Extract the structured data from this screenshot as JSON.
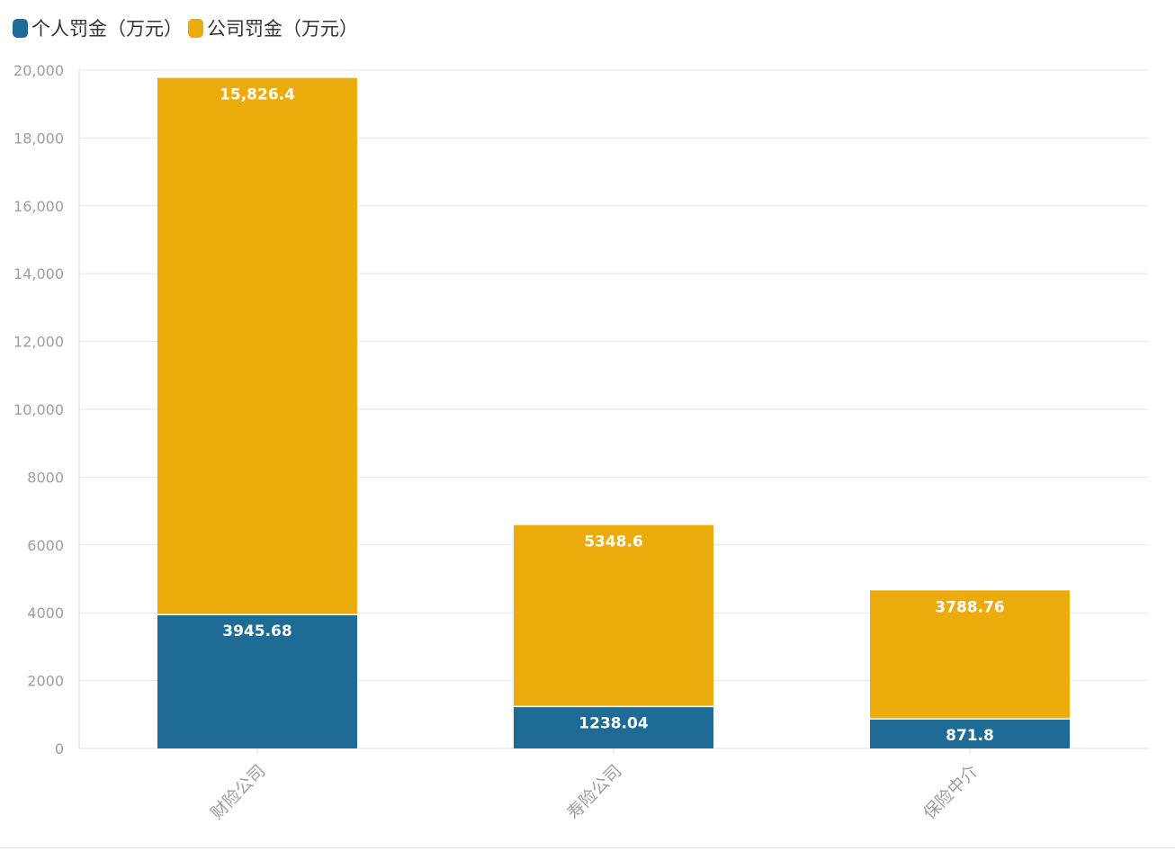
{
  "legend": {
    "personal_label": "个人罚金（万元）",
    "company_label": "公司罚金（万元）"
  },
  "colors": {
    "personal": "#1e6b96",
    "company": "#ebac0b",
    "grid": "#e6e6e6",
    "axis_text": "#9e9e9e"
  },
  "chart_data": {
    "type": "bar",
    "stacked": true,
    "categories": [
      "财险公司",
      "寿险公司",
      "保险中介"
    ],
    "series": [
      {
        "name": "个人罚金（万元）",
        "values": [
          3945.68,
          1238.04,
          871.8
        ],
        "labels": [
          "3945.68",
          "1238.04",
          "871.8"
        ]
      },
      {
        "name": "公司罚金（万元）",
        "values": [
          15826.4,
          5348.6,
          3788.76
        ],
        "labels": [
          "15,826.4",
          "5348.6",
          "3788.76"
        ]
      }
    ],
    "ylim": [
      0,
      20000
    ],
    "yticks": [
      0,
      2000,
      4000,
      6000,
      8000,
      10000,
      12000,
      14000,
      16000,
      18000,
      20000
    ],
    "ytick_labels": [
      "0",
      "2000",
      "4000",
      "6000",
      "8000",
      "10,000",
      "12,000",
      "14,000",
      "16,000",
      "18,000",
      "20,000"
    ],
    "grid": true,
    "legend_position": "top-left",
    "title": "",
    "xlabel": "",
    "ylabel": ""
  }
}
